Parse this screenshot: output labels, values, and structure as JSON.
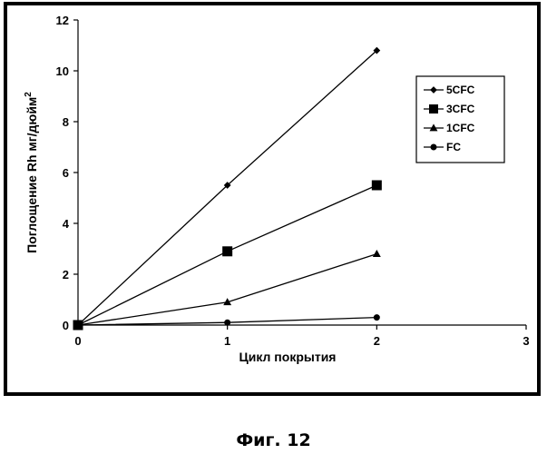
{
  "figure": {
    "caption": "Фиг. 12"
  },
  "chart_data": {
    "type": "line",
    "xlabel": "Цикл покрытия",
    "ylabel_main": "Поглощение Rh мг/дюйм",
    "ylabel_sup": "2",
    "xlim": [
      0,
      3
    ],
    "ylim": [
      0,
      12
    ],
    "xticks": [
      "0",
      "1",
      "2",
      "3"
    ],
    "yticks": [
      "0",
      "2",
      "4",
      "6",
      "8",
      "10",
      "12"
    ],
    "grid": false,
    "legend_position": "right",
    "series": [
      {
        "name": "5CFC",
        "marker": "diamond",
        "x": [
          0,
          1,
          2
        ],
        "y": [
          0,
          5.5,
          10.8
        ]
      },
      {
        "name": "3CFC",
        "marker": "square",
        "x": [
          0,
          1,
          2
        ],
        "y": [
          0,
          2.9,
          5.5
        ]
      },
      {
        "name": "1CFC",
        "marker": "triangle",
        "x": [
          0,
          1,
          2
        ],
        "y": [
          0,
          0.9,
          2.8
        ]
      },
      {
        "name": "FC",
        "marker": "circle",
        "x": [
          0,
          1,
          2
        ],
        "y": [
          0,
          0.1,
          0.3
        ]
      }
    ],
    "colors": {
      "frame": "#000000",
      "background": "#ffffff",
      "series": "#000000"
    }
  }
}
